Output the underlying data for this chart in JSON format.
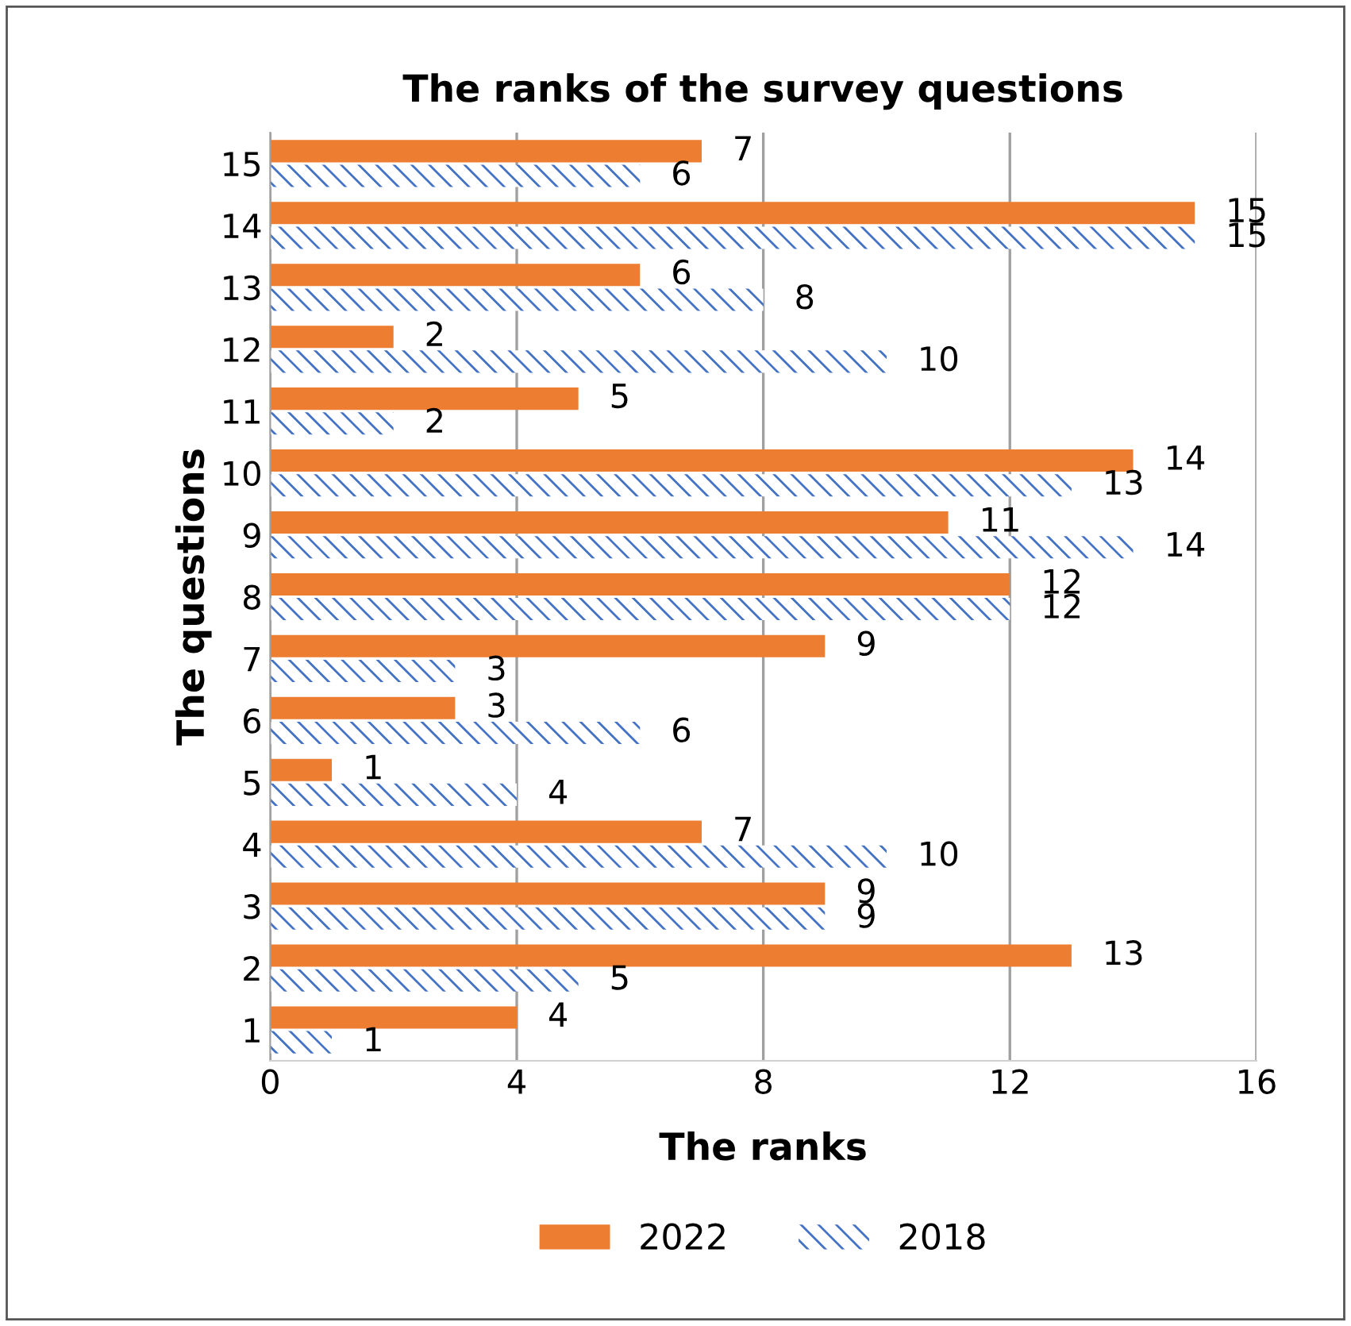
{
  "chart_data": {
    "type": "bar",
    "orientation": "horizontal",
    "title": "The ranks of the survey questions",
    "xlabel": "The ranks",
    "ylabel": "The questions",
    "categories": [
      "15",
      "14",
      "13",
      "12",
      "11",
      "10",
      "9",
      "8",
      "7",
      "6",
      "5",
      "4",
      "3",
      "2",
      "1"
    ],
    "series": [
      {
        "name": "2022",
        "color": "#ed7d31",
        "values": [
          7,
          15,
          6,
          2,
          5,
          14,
          11,
          12,
          9,
          3,
          1,
          7,
          9,
          13,
          4
        ]
      },
      {
        "name": "2018",
        "color": "#4472c4",
        "values": [
          6,
          15,
          8,
          10,
          2,
          13,
          14,
          12,
          3,
          6,
          4,
          10,
          9,
          5,
          1
        ]
      }
    ],
    "xlim": [
      0,
      16
    ],
    "xticks": [
      0,
      4,
      8,
      12,
      16
    ],
    "grid": "x",
    "legend": "bottom",
    "data_labels": true
  }
}
